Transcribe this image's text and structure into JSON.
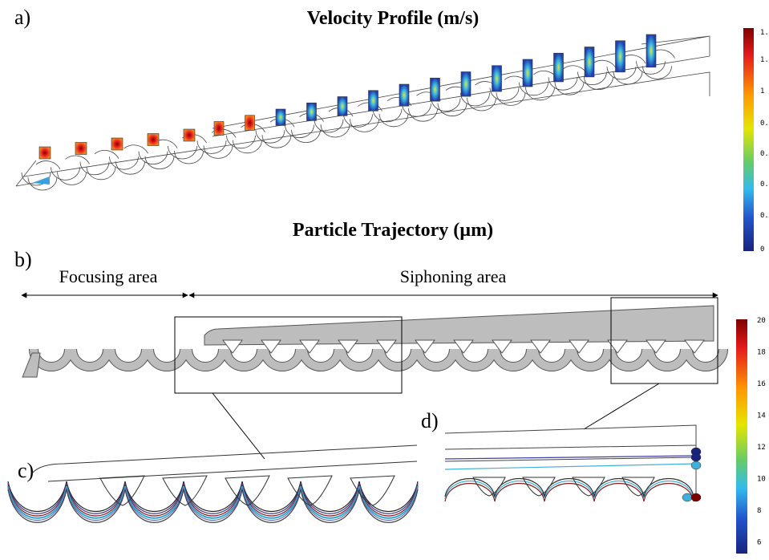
{
  "panel_a": {
    "label": "a)",
    "title": "Velocity Profile (m/s)"
  },
  "panel_b": {
    "label": "b)",
    "title": "Particle Trajectory (µm)",
    "focusing": "Focusing area",
    "siphoning": "Siphoning area"
  },
  "panel_c": {
    "label": "c)"
  },
  "panel_d": {
    "label": "d)"
  },
  "colorbar_velocity": {
    "labels": [
      "1.",
      "1.",
      "1",
      "0.",
      "0.",
      "0.",
      "0.",
      "0"
    ]
  },
  "colorbar_particle": {
    "labels": [
      "20",
      "18",
      "16",
      "14",
      "12",
      "10",
      "8",
      "6"
    ]
  }
}
